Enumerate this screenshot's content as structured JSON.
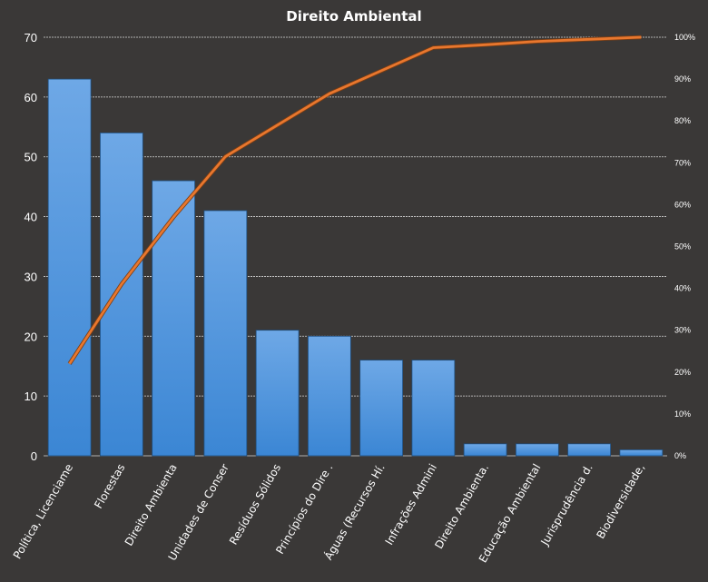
{
  "chart_data": {
    "type": "bar",
    "title": "Direito  Ambiental",
    "categories": [
      "Política, Licenciame",
      "Florestas",
      "Direito Ambienta",
      "Unidades de Conser",
      "Resíduos Sólidos",
      "Princípios do Dire .",
      "Águas (Recursos Hí.",
      "Infrações Admini",
      "Direito Ambienta.",
      "Educação Ambiental",
      "Jurisprudência d.",
      "Biodiversidade,"
    ],
    "series": [
      {
        "type": "bar",
        "values": [
          63,
          54,
          46,
          41,
          21,
          20,
          16,
          16,
          2,
          2,
          2,
          1
        ],
        "color": "#4a90d9"
      },
      {
        "type": "line",
        "axis": "secondary",
        "values": [
          22,
          41,
          57,
          71.5,
          79,
          86.5,
          92,
          97.5,
          98.2,
          99,
          99.5,
          100
        ],
        "color": "#e8772e"
      }
    ],
    "ylim": [
      0,
      70
    ],
    "yticks": [
      "0",
      "10",
      "20",
      "30",
      "40",
      "50",
      "60",
      "70"
    ],
    "y2lim": [
      0,
      100
    ],
    "y2ticks": [
      "0%",
      "10%",
      "20%",
      "30%",
      "40%",
      "50%",
      "60%",
      "70%",
      "80%",
      "90%",
      "100%"
    ],
    "grid": true,
    "legend": "none",
    "colors": {
      "background": "#3a3837",
      "bar": "#4a90d9",
      "line": "#e8772e",
      "grid": "#d8d8d8",
      "text": "#ffffff"
    }
  }
}
